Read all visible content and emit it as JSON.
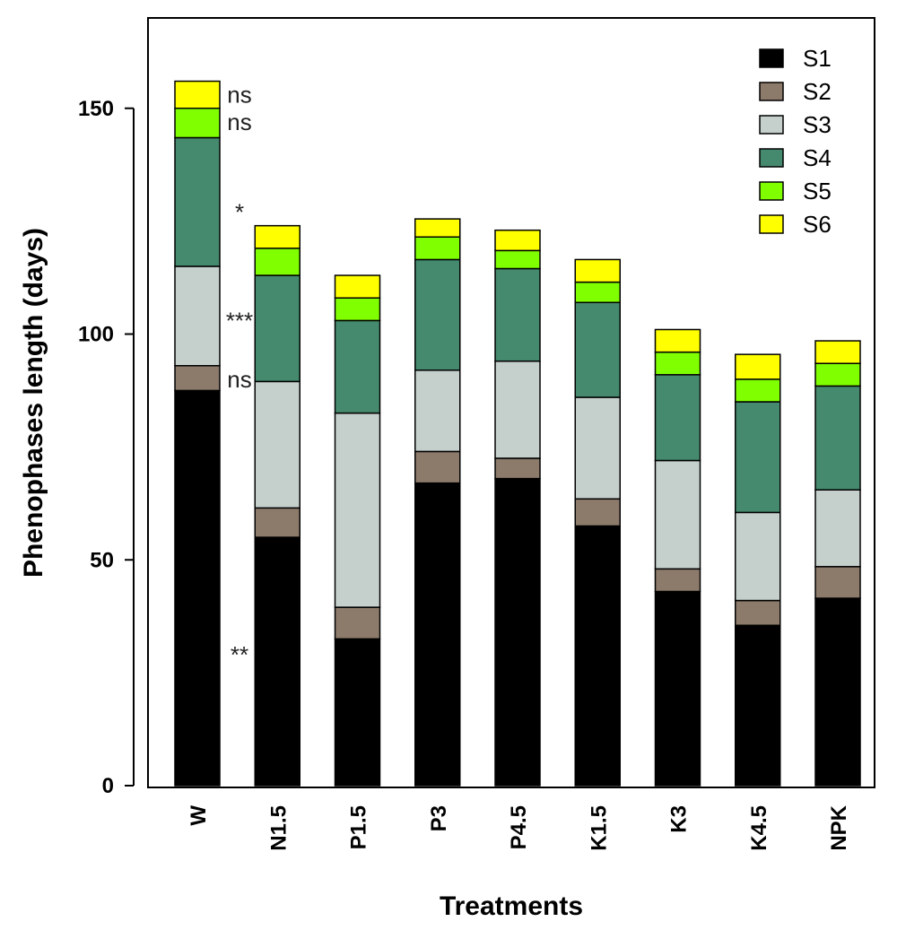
{
  "chart_data": {
    "type": "bar",
    "stacked": true,
    "xlabel": "Treatments",
    "ylabel": "Phenophases length (days)",
    "ylim": [
      0,
      170
    ],
    "yticks": [
      0,
      50,
      100,
      150
    ],
    "categories": [
      "W",
      "N1.5",
      "P1.5",
      "P3",
      "P4.5",
      "K1.5",
      "K3",
      "K4.5",
      "NPK"
    ],
    "series": [
      {
        "name": "S1",
        "color": "#000000",
        "values": [
          87.5,
          55,
          32.5,
          67,
          68,
          57.5,
          43,
          35.5,
          41.5
        ]
      },
      {
        "name": "S2",
        "color": "#8c7a6b",
        "values": [
          5.5,
          6.5,
          7,
          7,
          4.5,
          6,
          5,
          5.5,
          7
        ]
      },
      {
        "name": "S3",
        "color": "#c5d0cc",
        "values": [
          22,
          28,
          43,
          18,
          21.5,
          22.5,
          24,
          19.5,
          17
        ]
      },
      {
        "name": "S4",
        "color": "#458a6e",
        "values": [
          28.5,
          23.5,
          20.5,
          24.5,
          20.5,
          21,
          19,
          24.5,
          23
        ]
      },
      {
        "name": "S5",
        "color": "#80ff00",
        "values": [
          6.5,
          6,
          5,
          5,
          4,
          4.5,
          5,
          5,
          5
        ]
      },
      {
        "name": "S6",
        "color": "#ffff00",
        "values": [
          6,
          5,
          5,
          4,
          4.5,
          5,
          5,
          5.5,
          5
        ]
      }
    ],
    "annotations": [
      {
        "text": "ns",
        "category": "W",
        "y": 153
      },
      {
        "text": "ns",
        "category": "W",
        "y": 147
      },
      {
        "text": "*",
        "category": "W",
        "y": 127
      },
      {
        "text": "***",
        "category": "W",
        "y": 103
      },
      {
        "text": "ns",
        "category": "W",
        "y": 90
      },
      {
        "text": "**",
        "category": "W",
        "y": 29
      }
    ],
    "legend": {
      "position": "top-right"
    },
    "grid": false
  }
}
